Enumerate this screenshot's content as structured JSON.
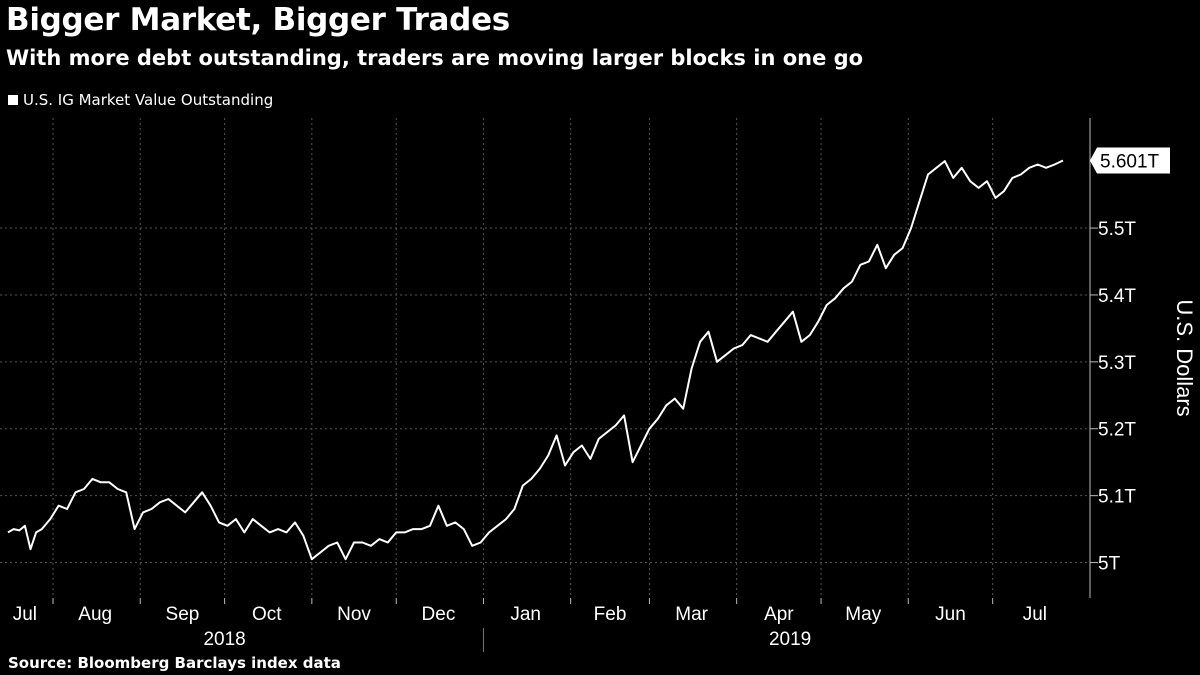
{
  "header": {
    "title": "Bigger Market, Bigger Trades",
    "subtitle": "With more debt outstanding, traders are moving larger blocks in one go"
  },
  "footer": {
    "source": "Source: Bloomberg Barclays index data"
  },
  "colors": {
    "background": "#000000",
    "line": "#ffffff",
    "grid": "#555555",
    "label_box": "#ffffff"
  },
  "chart_data": {
    "type": "line",
    "title": "Bigger Market, Bigger Trades",
    "subtitle": "With more debt outstanding, traders are moving larger blocks in one go",
    "xlabel": "",
    "ylabel": "U.S. Dollars",
    "unit": "T",
    "ylim": [
      4.95,
      5.66
    ],
    "yticks": [
      5.0,
      5.1,
      5.2,
      5.3,
      5.4,
      5.5
    ],
    "ytick_labels": [
      "5T",
      "5.1T",
      "5.2T",
      "5.3T",
      "5.4T",
      "5.5T"
    ],
    "grid": true,
    "legend": {
      "position": "top-left",
      "entries": [
        "U.S. IG Market Value Outstanding"
      ]
    },
    "x_domain": [
      "2018-07-16",
      "2019-07-26"
    ],
    "month_labels": [
      {
        "label": "Jul",
        "date": "2018-07-22"
      },
      {
        "label": "Aug",
        "date": "2018-08-16"
      },
      {
        "label": "Sep",
        "date": "2018-09-16"
      },
      {
        "label": "Oct",
        "date": "2018-10-16"
      },
      {
        "label": "Nov",
        "date": "2018-11-16"
      },
      {
        "label": "Dec",
        "date": "2018-12-16"
      },
      {
        "label": "Jan",
        "date": "2019-01-16"
      },
      {
        "label": "Feb",
        "date": "2019-02-15"
      },
      {
        "label": "Mar",
        "date": "2019-03-16"
      },
      {
        "label": "Apr",
        "date": "2019-04-16"
      },
      {
        "label": "May",
        "date": "2019-05-16"
      },
      {
        "label": "Jun",
        "date": "2019-06-16"
      },
      {
        "label": "Jul",
        "date": "2019-07-16"
      }
    ],
    "month_boundaries": [
      "2018-08-01",
      "2018-09-01",
      "2018-10-01",
      "2018-11-01",
      "2018-12-01",
      "2019-01-01",
      "2019-02-01",
      "2019-03-01",
      "2019-04-01",
      "2019-05-01",
      "2019-06-01",
      "2019-07-01"
    ],
    "year_labels": [
      {
        "label": "2018",
        "date": "2018-10-01"
      },
      {
        "label": "2019",
        "date": "2019-04-20"
      }
    ],
    "year_divider": "2019-01-01",
    "last_value_label": "5.601T",
    "series": [
      {
        "name": "U.S. IG Market Value Outstanding",
        "x": [
          "2018-07-16",
          "2018-07-18",
          "2018-07-20",
          "2018-07-22",
          "2018-07-24",
          "2018-07-26",
          "2018-07-28",
          "2018-07-31",
          "2018-08-03",
          "2018-08-06",
          "2018-08-09",
          "2018-08-12",
          "2018-08-15",
          "2018-08-18",
          "2018-08-21",
          "2018-08-24",
          "2018-08-27",
          "2018-08-30",
          "2018-09-02",
          "2018-09-05",
          "2018-09-08",
          "2018-09-11",
          "2018-09-14",
          "2018-09-17",
          "2018-09-20",
          "2018-09-23",
          "2018-09-26",
          "2018-09-29",
          "2018-10-02",
          "2018-10-05",
          "2018-10-08",
          "2018-10-11",
          "2018-10-14",
          "2018-10-17",
          "2018-10-20",
          "2018-10-23",
          "2018-10-26",
          "2018-10-29",
          "2018-11-01",
          "2018-11-04",
          "2018-11-07",
          "2018-11-10",
          "2018-11-13",
          "2018-11-16",
          "2018-11-19",
          "2018-11-22",
          "2018-11-25",
          "2018-11-28",
          "2018-12-01",
          "2018-12-04",
          "2018-12-07",
          "2018-12-10",
          "2018-12-13",
          "2018-12-16",
          "2018-12-19",
          "2018-12-22",
          "2018-12-25",
          "2018-12-28",
          "2018-12-31",
          "2019-01-03",
          "2019-01-06",
          "2019-01-09",
          "2019-01-12",
          "2019-01-15",
          "2019-01-18",
          "2019-01-21",
          "2019-01-24",
          "2019-01-27",
          "2019-01-30",
          "2019-02-02",
          "2019-02-05",
          "2019-02-08",
          "2019-02-11",
          "2019-02-14",
          "2019-02-17",
          "2019-02-20",
          "2019-02-23",
          "2019-02-26",
          "2019-03-01",
          "2019-03-04",
          "2019-03-07",
          "2019-03-10",
          "2019-03-13",
          "2019-03-16",
          "2019-03-19",
          "2019-03-22",
          "2019-03-25",
          "2019-03-28",
          "2019-03-31",
          "2019-04-03",
          "2019-04-06",
          "2019-04-09",
          "2019-04-12",
          "2019-04-15",
          "2019-04-18",
          "2019-04-21",
          "2019-04-24",
          "2019-04-27",
          "2019-04-30",
          "2019-05-03",
          "2019-05-06",
          "2019-05-09",
          "2019-05-12",
          "2019-05-15",
          "2019-05-18",
          "2019-05-21",
          "2019-05-24",
          "2019-05-27",
          "2019-05-30",
          "2019-06-02",
          "2019-06-05",
          "2019-06-08",
          "2019-06-11",
          "2019-06-14",
          "2019-06-17",
          "2019-06-20",
          "2019-06-23",
          "2019-06-26",
          "2019-06-29",
          "2019-07-02",
          "2019-07-05",
          "2019-07-08",
          "2019-07-11",
          "2019-07-14",
          "2019-07-17",
          "2019-07-20",
          "2019-07-23",
          "2019-07-26"
        ],
        "values": [
          5.045,
          5.05,
          5.048,
          5.055,
          5.02,
          5.045,
          5.05,
          5.065,
          5.085,
          5.08,
          5.105,
          5.11,
          5.125,
          5.12,
          5.12,
          5.11,
          5.105,
          5.05,
          5.075,
          5.08,
          5.09,
          5.095,
          5.085,
          5.075,
          5.09,
          5.105,
          5.085,
          5.06,
          5.055,
          5.065,
          5.045,
          5.065,
          5.055,
          5.045,
          5.05,
          5.045,
          5.06,
          5.04,
          5.005,
          5.015,
          5.025,
          5.03,
          5.005,
          5.03,
          5.03,
          5.025,
          5.035,
          5.03,
          5.045,
          5.045,
          5.05,
          5.05,
          5.055,
          5.085,
          5.055,
          5.06,
          5.05,
          5.025,
          5.03,
          5.045,
          5.055,
          5.065,
          5.08,
          5.115,
          5.125,
          5.14,
          5.16,
          5.19,
          5.145,
          5.165,
          5.175,
          5.155,
          5.185,
          5.195,
          5.205,
          5.22,
          5.15,
          5.175,
          5.2,
          5.215,
          5.235,
          5.245,
          5.23,
          5.29,
          5.33,
          5.345,
          5.3,
          5.31,
          5.32,
          5.325,
          5.34,
          5.335,
          5.33,
          5.345,
          5.36,
          5.375,
          5.33,
          5.34,
          5.36,
          5.385,
          5.395,
          5.41,
          5.42,
          5.445,
          5.45,
          5.475,
          5.44,
          5.46,
          5.47,
          5.5,
          5.54,
          5.58,
          5.59,
          5.6,
          5.575,
          5.59,
          5.57,
          5.56,
          5.57,
          5.545,
          5.555,
          5.575,
          5.58,
          5.59,
          5.595,
          5.59,
          5.595,
          5.601
        ]
      }
    ]
  }
}
